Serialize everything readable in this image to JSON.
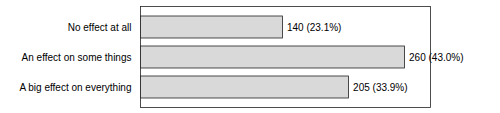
{
  "chart_data": {
    "type": "bar",
    "orientation": "horizontal",
    "categories": [
      "No effect at all",
      "An effect on some things",
      "A big effect on everything"
    ],
    "values": [
      140,
      260,
      205
    ],
    "value_labels": [
      "140 (23.1%)",
      "260 (43.0%)",
      "205 (33.9%)"
    ],
    "data_labels": true,
    "color": "#d9d9d9",
    "xlim": [
      0,
      285
    ],
    "tick_labels": "y"
  }
}
